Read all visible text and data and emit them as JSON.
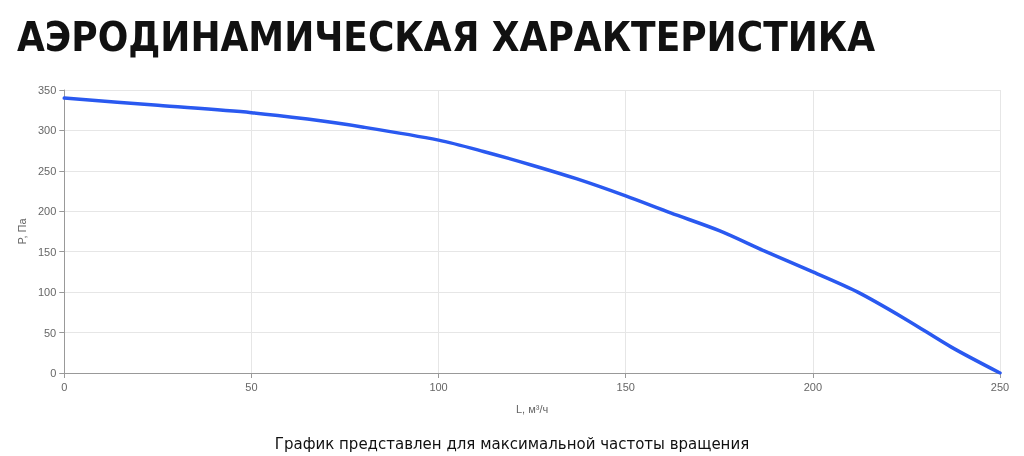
{
  "chart_data": {
    "type": "line",
    "title": "АЭРОДИНАМИЧЕСКАЯ ХАРАКТЕРИСТИКА",
    "xlabel": "L, м³/ч",
    "ylabel": "P, Па",
    "annotations": [
      "График представлен для максимальной частоты вращения"
    ],
    "x": [
      0,
      25,
      50,
      65,
      80,
      100,
      112,
      125,
      137,
      150,
      162,
      175,
      187,
      200,
      212,
      225,
      237,
      250
    ],
    "series": [
      {
        "color": "#2a59f0",
        "values": [
          340,
          331,
          322,
          314,
          304,
          288,
          274,
          257,
          240,
          219,
          198,
          176,
          151,
          125,
          100,
          66,
          32,
          0
        ]
      }
    ],
    "xlim": [
      0,
      250
    ],
    "xticks": [
      0,
      50,
      100,
      150,
      200,
      250
    ],
    "ylim": [
      0,
      350
    ],
    "yticks": [
      0,
      50,
      100,
      150,
      200,
      250,
      300,
      350
    ],
    "grid": true,
    "marker": "none",
    "line_style": "solid"
  }
}
